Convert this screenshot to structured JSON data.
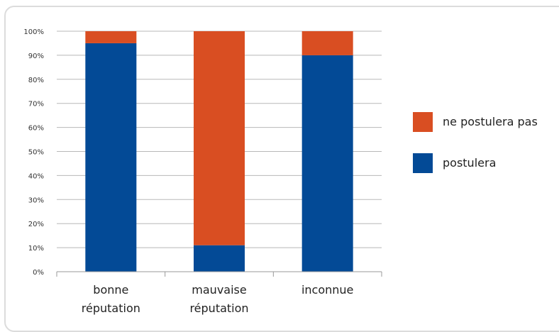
{
  "chart_data": {
    "type": "bar",
    "stacked": true,
    "percent": true,
    "categories": [
      [
        "bonne",
        "réputation"
      ],
      [
        "mauvaise",
        "réputation"
      ],
      [
        "inconnue"
      ]
    ],
    "series": [
      {
        "name": "postulera",
        "color": "#034a96",
        "values": [
          95,
          11,
          90
        ]
      },
      {
        "name": "ne postulera pas",
        "color": "#d94e22",
        "values": [
          5,
          89,
          10
        ]
      }
    ],
    "ylim": [
      0,
      100
    ],
    "yticks": [
      "0%",
      "10%",
      "20%",
      "30%",
      "40%",
      "50%",
      "60%",
      "70%",
      "80%",
      "90%",
      "100%"
    ],
    "grid": true,
    "legend_position": "right",
    "legend_order": [
      "ne postulera pas",
      "postulera"
    ]
  }
}
